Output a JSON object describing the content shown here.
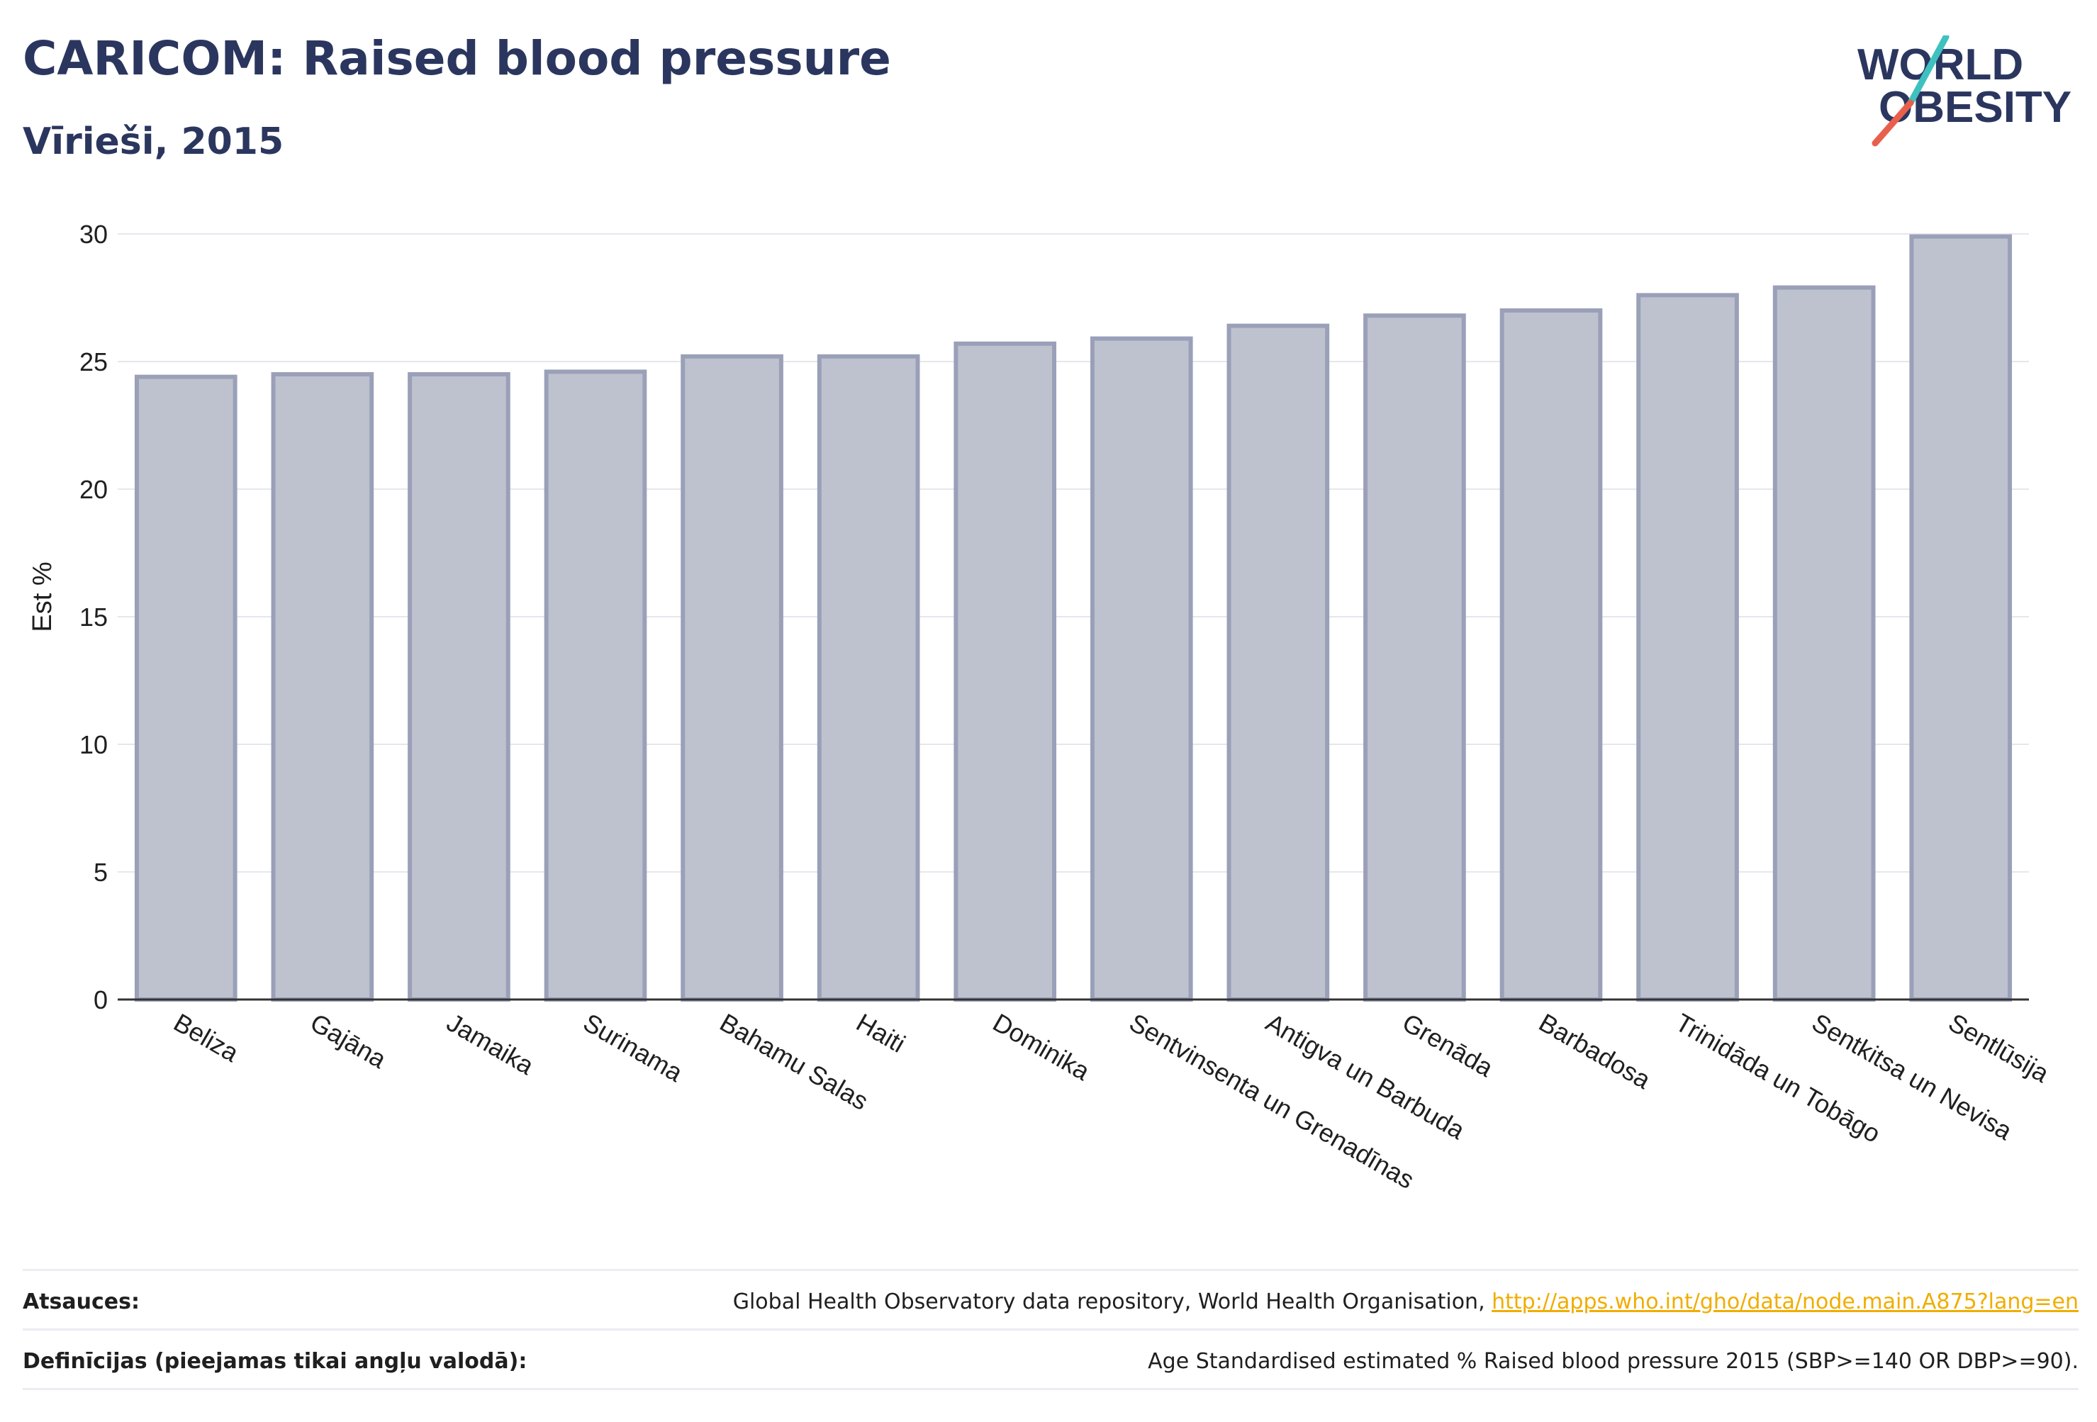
{
  "header": {
    "title": "CARICOM: Raised blood pressure",
    "subtitle": "Vīrieši, 2015",
    "logo_line1": "WORLD",
    "logo_line2": "OBESITY"
  },
  "colors": {
    "title": "#2b365f",
    "bar_fill": "#bec2cf",
    "bar_stroke": "#9aa0b8",
    "grid": "#e6e6ee",
    "axis": "#333333",
    "link": "#f0ad00",
    "logo_teal": "#3fc1c0",
    "logo_red": "#e8604c"
  },
  "chart_data": {
    "type": "bar",
    "categories": [
      "Beliza",
      "Gajāna",
      "Jamaika",
      "Surinama",
      "Bahamu Salas",
      "Haiti",
      "Dominika",
      "Sentvinsenta un Grenadīnas",
      "Antigva un Barbuda",
      "Grenāda",
      "Barbadosa",
      "Trinidāda un Tobāgo",
      "Sentkitsa un Nevisa",
      "Sentlūsija"
    ],
    "values": [
      24.4,
      24.5,
      24.5,
      24.6,
      25.2,
      25.2,
      25.7,
      25.9,
      26.4,
      26.8,
      27.0,
      27.6,
      27.9,
      29.9
    ],
    "ylabel": "Est %",
    "xlabel": "",
    "ylim": [
      0,
      30
    ],
    "yticks": [
      0,
      5,
      10,
      15,
      20,
      25,
      30
    ],
    "grid": true
  },
  "footer": {
    "sources_label": "Atsauces:",
    "sources_text": "Global Health Observatory data repository, World Health Organisation, ",
    "sources_link": "http://apps.who.int/gho/data/node.main.A875?lang=en",
    "definitions_label": "Definīcijas (pieejamas tikai angļu valodā):",
    "definitions_text": "Age Standardised estimated % Raised blood pressure 2015 (SBP>=140 OR DBP>=90)."
  }
}
